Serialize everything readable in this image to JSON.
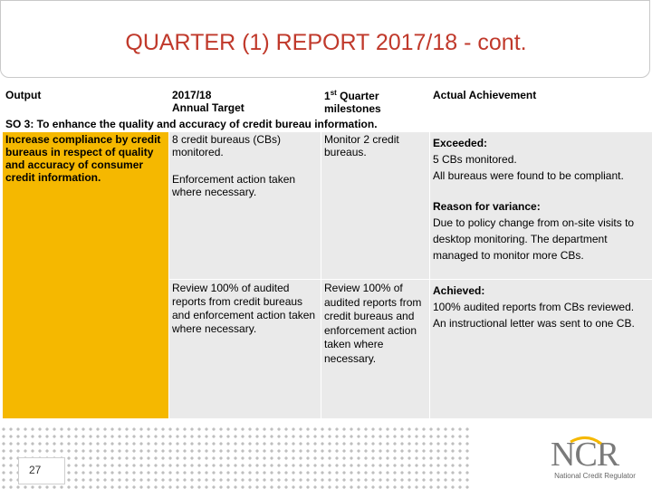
{
  "title": "QUARTER (1) REPORT 2017/18 - cont.",
  "table": {
    "headers": {
      "output": "Output",
      "target_line1": "2017/18",
      "target_line2": "Annual Target",
      "milestone_prefix": "1",
      "milestone_sup": "st",
      "milestone_rest": " Quarter",
      "milestone_line2": "milestones",
      "achievement": "Actual Achievement"
    },
    "so_row": "SO 3: To enhance the quality and accuracy of credit bureau information.",
    "output": "Increase compliance by credit bureaus in respect of quality and accuracy of consumer credit information.",
    "rows": [
      {
        "target": "8 credit bureaus (CBs) monitored.",
        "target2": "Enforcement action taken where necessary.",
        "milestone": "Monitor 2 credit bureaus.",
        "status": "Exceeded:",
        "detail1": "5 CBs monitored.",
        "detail2": "All bureaus were found to be compliant.",
        "variance_label": "Reason for variance:",
        "variance": "Due to policy change from on-site visits to desktop monitoring. The department managed to monitor more CBs."
      },
      {
        "target": "Review 100% of audited reports from credit bureaus and enforcement action taken where necessary.",
        "milestone": "Review 100% of audited reports from credit bureaus and enforcement action taken where necessary.",
        "status": "Achieved:",
        "detail1": "100% audited reports from CBs reviewed.",
        "detail2": "An instructional letter was sent to one CB."
      }
    ]
  },
  "footer": {
    "page_number": "27",
    "logo_text": "NCR",
    "logo_subtitle": "National Credit Regulator",
    "brand_color": "#f5b800"
  }
}
